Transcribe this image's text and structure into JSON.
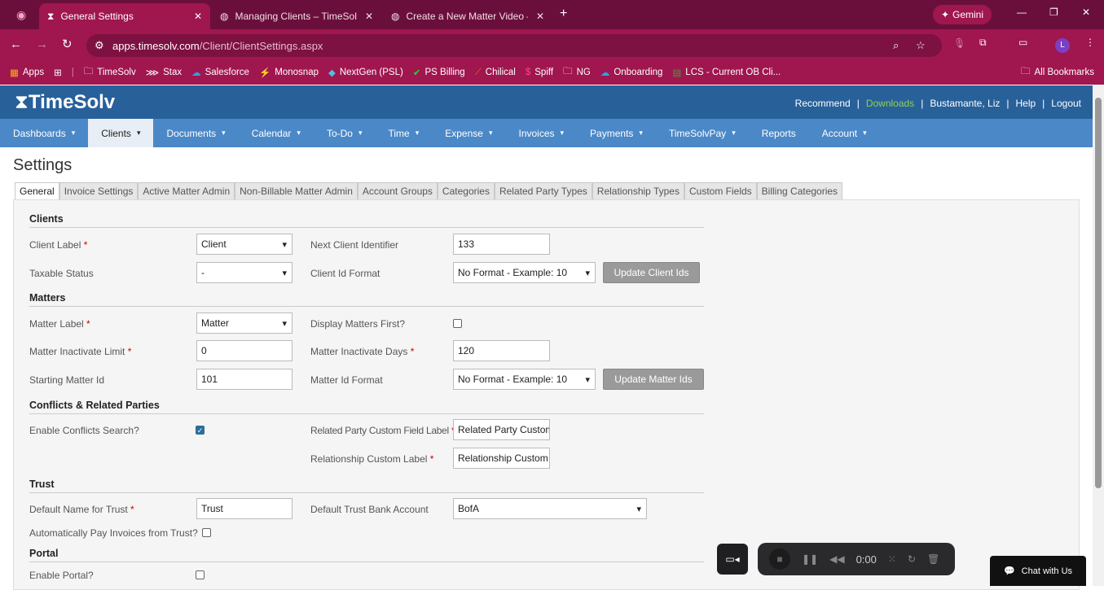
{
  "browser": {
    "tabs": [
      {
        "title": "General Settings",
        "active": true
      },
      {
        "title": "Managing Clients – TimeSolv Kr"
      },
      {
        "title": "Create a New Matter Video – Ti"
      }
    ],
    "gemini": "Gemini",
    "url_host": "apps.timesolv.com",
    "url_path": "/Client/ClientSettings.aspx",
    "profile": "L",
    "bookmarks": [
      "Apps",
      "TimeSolv",
      "Stax",
      "Salesforce",
      "Monosnap",
      "NextGen (PSL)",
      "PS Billing",
      "Chilical",
      "Spiff",
      "NG",
      "Onboarding",
      "LCS - Current OB Cli..."
    ],
    "all_bookmarks": "All Bookmarks"
  },
  "app": {
    "logo": "TimeSolv",
    "links": [
      "Recommend",
      "Downloads",
      "Bustamante, Liz",
      "Help",
      "Logout"
    ],
    "accent": "#28609a",
    "nav": [
      {
        "label": "Dashboards",
        "dd": true
      },
      {
        "label": "Clients",
        "dd": true,
        "active": true
      },
      {
        "label": "Documents",
        "dd": true
      },
      {
        "label": "Calendar",
        "dd": true
      },
      {
        "label": "To-Do",
        "dd": true
      },
      {
        "label": "Time",
        "dd": true
      },
      {
        "label": "Expense",
        "dd": true
      },
      {
        "label": "Invoices",
        "dd": true
      },
      {
        "label": "Payments",
        "dd": true
      },
      {
        "label": "TimeSolvPay",
        "dd": true
      },
      {
        "label": "Reports"
      },
      {
        "label": "Account",
        "dd": true
      }
    ]
  },
  "page": {
    "title": "Settings",
    "tabs": [
      "General",
      "Invoice Settings",
      "Active Matter Admin",
      "Non-Billable Matter Admin",
      "Account Groups",
      "Categories",
      "Related Party Types",
      "Relationship Types",
      "Custom Fields",
      "Billing Categories"
    ],
    "sections": {
      "clients": "Clients",
      "matters": "Matters",
      "conflicts": "Conflicts & Related Parties",
      "trust": "Trust",
      "portal": "Portal"
    },
    "fields": {
      "client_label": {
        "label": "Client Label",
        "value": "Client"
      },
      "taxable_status": {
        "label": "Taxable Status",
        "value": "-"
      },
      "next_client_id": {
        "label": "Next Client Identifier",
        "value": "133"
      },
      "client_id_format": {
        "label": "Client Id Format",
        "value": "No Format - Example: 10"
      },
      "update_client_ids": "Update Client Ids",
      "matter_label": {
        "label": "Matter Label",
        "value": "Matter"
      },
      "display_matters_first": {
        "label": "Display Matters First?",
        "checked": false
      },
      "matter_inactivate_limit": {
        "label": "Matter Inactivate Limit",
        "value": "0"
      },
      "matter_inactivate_days": {
        "label": "Matter Inactivate Days",
        "value": "120"
      },
      "starting_matter_id": {
        "label": "Starting Matter Id",
        "value": "101"
      },
      "matter_id_format": {
        "label": "Matter Id Format",
        "value": "No Format - Example: 10"
      },
      "update_matter_ids": "Update Matter Ids",
      "enable_conflicts": {
        "label": "Enable Conflicts Search?",
        "checked": true
      },
      "related_party_label": {
        "label": "Related Party Custom Field Label",
        "value": "Related Party Custom"
      },
      "relationship_label": {
        "label": "Relationship Custom Label",
        "value": "Relationship Custom"
      },
      "trust_name": {
        "label": "Default Name for Trust",
        "value": "Trust"
      },
      "trust_bank": {
        "label": "Default Trust Bank Account",
        "value": "BofA"
      },
      "auto_pay_trust": {
        "label": "Automatically Pay Invoices from Trust?",
        "checked": false
      },
      "enable_portal": {
        "label": "Enable Portal?",
        "checked": false
      }
    }
  },
  "recorder": {
    "time": "0:00"
  },
  "chat": {
    "label": "Chat with Us"
  }
}
